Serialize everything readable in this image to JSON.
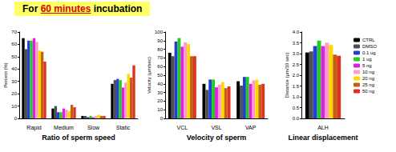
{
  "title": {
    "text": "For 60 minutes incubation",
    "emphasis": "60 minutes"
  },
  "chart_data": [
    {
      "type": "bar",
      "xlabel": "Ratio of sperm speed",
      "ylabel": "Percent (%)",
      "categories": [
        "Rapid",
        "Medium",
        "Slow",
        "Static"
      ],
      "ylim": [
        0,
        70
      ],
      "yticks": [
        0,
        10,
        20,
        30,
        40,
        50,
        60,
        70
      ],
      "series": [
        {
          "name": "CTRL",
          "color": "#000000",
          "values": [
            65,
            8,
            2,
            28
          ]
        },
        {
          "name": "DMSO",
          "color": "#505050",
          "values": [
            56,
            10,
            2,
            31
          ]
        },
        {
          "name": "0.1 ug",
          "color": "#1f3fd8",
          "values": [
            63,
            5,
            1,
            32
          ]
        },
        {
          "name": "1 ug",
          "color": "#22cc22",
          "values": [
            63,
            5,
            2,
            31
          ]
        },
        {
          "name": "5 ng",
          "color": "#e020e0",
          "values": [
            65,
            8,
            1,
            25
          ]
        },
        {
          "name": "10 ng",
          "color": "#ff9ad0",
          "values": [
            62,
            7,
            2,
            29
          ]
        },
        {
          "name": "20 ng",
          "color": "#ffd800",
          "values": [
            55,
            6,
            3,
            36
          ]
        },
        {
          "name": "25 ng",
          "color": "#c06010",
          "values": [
            54,
            11,
            2,
            33
          ]
        },
        {
          "name": "50 ng",
          "color": "#e03020",
          "values": [
            46,
            9,
            2,
            43
          ]
        }
      ]
    },
    {
      "type": "bar",
      "xlabel": "Velocity of sperm",
      "ylabel": "Velocity (μm/sec)",
      "categories": [
        "VCL",
        "VSL",
        "VAP"
      ],
      "ylim": [
        0,
        100
      ],
      "yticks": [
        0,
        10,
        20,
        30,
        40,
        50,
        60,
        70,
        80,
        90,
        100
      ],
      "series": [
        {
          "name": "CTRL",
          "color": "#000000",
          "values": [
            76,
            40,
            43
          ]
        },
        {
          "name": "DMSO",
          "color": "#505050",
          "values": [
            72,
            33,
            38
          ]
        },
        {
          "name": "0.1 ug",
          "color": "#1f3fd8",
          "values": [
            89,
            45,
            48
          ]
        },
        {
          "name": "1 ug",
          "color": "#22cc22",
          "values": [
            93,
            45,
            48
          ]
        },
        {
          "name": "5 ng",
          "color": "#e020e0",
          "values": [
            83,
            36,
            40
          ]
        },
        {
          "name": "10 ng",
          "color": "#ff9ad0",
          "values": [
            88,
            39,
            44
          ]
        },
        {
          "name": "20 ng",
          "color": "#ffd800",
          "values": [
            86,
            42,
            45
          ]
        },
        {
          "name": "25 ng",
          "color": "#c06010",
          "values": [
            72,
            35,
            39
          ]
        },
        {
          "name": "50 ng",
          "color": "#e03020",
          "values": [
            72,
            37,
            40
          ]
        }
      ]
    },
    {
      "type": "bar",
      "xlabel": "Linear displacement",
      "ylabel": "Distance (μm/10 sec)",
      "categories": [
        "ALH"
      ],
      "legend": "right",
      "ylim": [
        0,
        4
      ],
      "yticks": [
        {
          "value": 0,
          "label": "0.0"
        },
        {
          "value": 0.5,
          "label": "0.5"
        },
        {
          "value": 1,
          "label": "1.0"
        },
        {
          "value": 1.5,
          "label": "1.5"
        },
        {
          "value": 2,
          "label": "2.0"
        },
        {
          "value": 2.5,
          "label": "2.5"
        },
        {
          "value": 3,
          "label": "3.0"
        },
        {
          "value": 3.5,
          "label": "3.5"
        },
        {
          "value": 4,
          "label": "4.0"
        }
      ],
      "series": [
        {
          "name": "CTRL",
          "color": "#000000",
          "values": [
            3.05
          ]
        },
        {
          "name": "DMSO",
          "color": "#505050",
          "values": [
            3.1
          ]
        },
        {
          "name": "0.1 ug",
          "color": "#1f3fd8",
          "values": [
            3.35
          ]
        },
        {
          "name": "1 ug",
          "color": "#22cc22",
          "values": [
            3.6
          ]
        },
        {
          "name": "5 ng",
          "color": "#e020e0",
          "values": [
            3.35
          ]
        },
        {
          "name": "10 ng",
          "color": "#ff9ad0",
          "values": [
            3.5
          ]
        },
        {
          "name": "20 ng",
          "color": "#ffd800",
          "values": [
            3.4
          ]
        },
        {
          "name": "25 ng",
          "color": "#c06010",
          "values": [
            2.95
          ]
        },
        {
          "name": "50 ng",
          "color": "#e03020",
          "values": [
            2.9
          ]
        }
      ]
    }
  ]
}
